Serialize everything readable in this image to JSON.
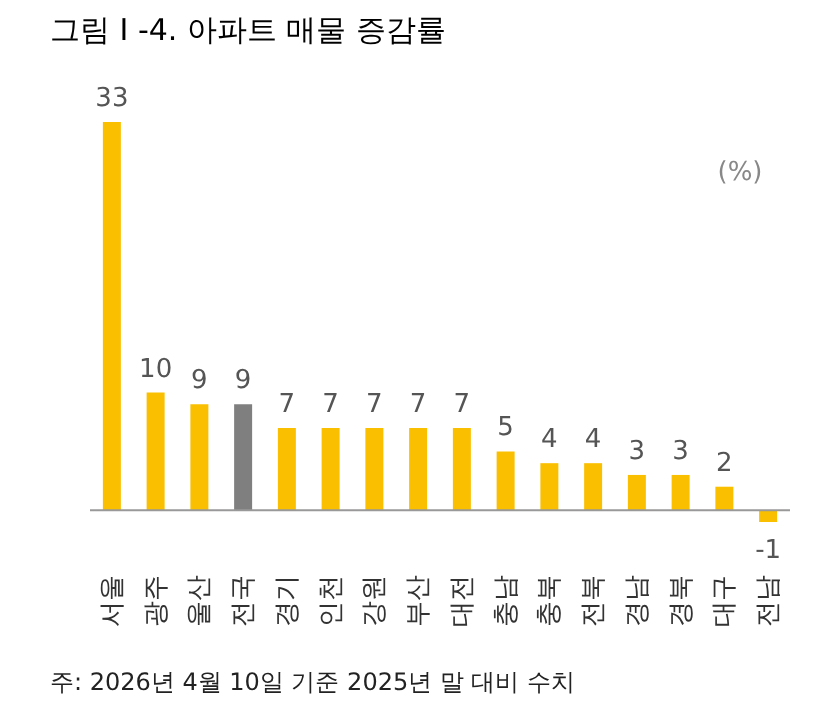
{
  "chart_data": {
    "type": "bar",
    "title": "그림 I -4. 아파트 매물 증감률",
    "ylabel": "(%)",
    "categories": [
      "서울",
      "광주",
      "울산",
      "전국",
      "경기",
      "인천",
      "강원",
      "부산",
      "대전",
      "충남",
      "충북",
      "전북",
      "경남",
      "경북",
      "대구",
      "전남"
    ],
    "values": [
      33,
      10,
      9,
      9,
      7,
      7,
      7,
      7,
      7,
      5,
      4,
      4,
      3,
      3,
      2,
      -1
    ],
    "colors": [
      "#fac000",
      "#fac000",
      "#fac000",
      "#7f7f7f",
      "#fac000",
      "#fac000",
      "#fac000",
      "#fac000",
      "#fac000",
      "#fac000",
      "#fac000",
      "#fac000",
      "#fac000",
      "#fac000",
      "#fac000",
      "#fac000"
    ],
    "data_labels": true,
    "annotations": [
      "주: 2026년 4월 10일 기준 2025년 말 대비 수치"
    ]
  }
}
